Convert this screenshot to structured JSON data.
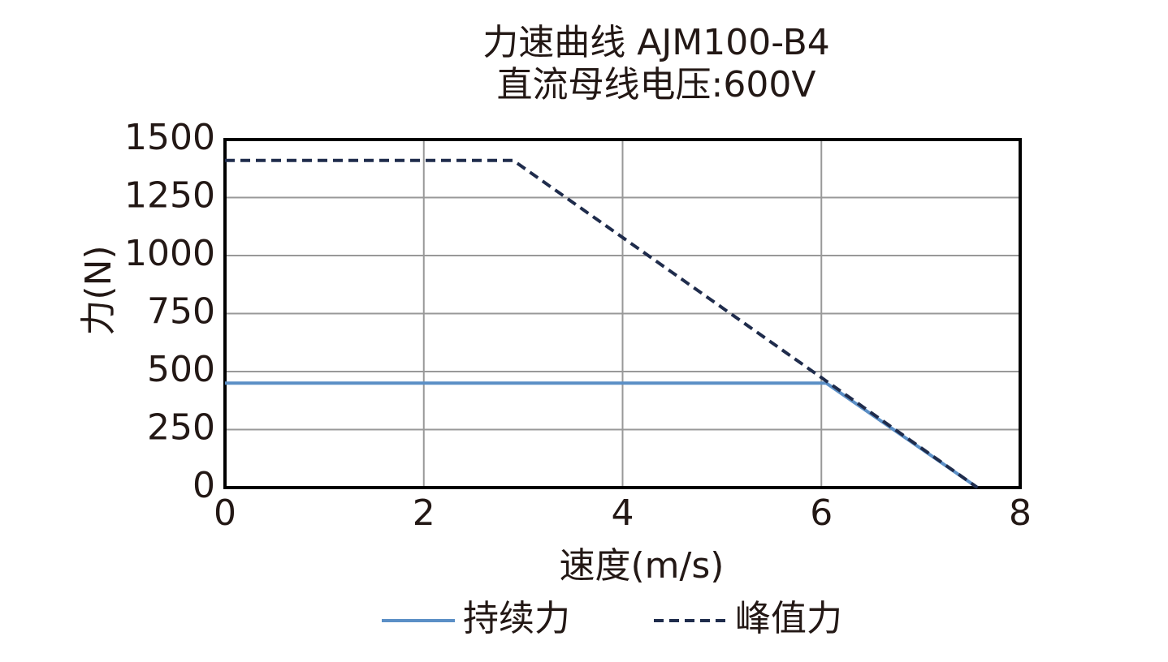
{
  "chart_data": {
    "type": "line",
    "title": "力速曲线 AJM100-B4",
    "subtitle": "直流母线电压:600V",
    "x_label": "速度(m/s)",
    "y_label": "力(N)",
    "xlim": [
      0,
      8
    ],
    "xticks": [
      0,
      2,
      4,
      6,
      8
    ],
    "ylim": [
      0,
      1500
    ],
    "yticks": [
      0,
      250,
      500,
      750,
      1000,
      1250,
      1500
    ],
    "grid": true,
    "legend": "bottom",
    "series": [
      {
        "name": "持续力",
        "color": "#5b8fc6",
        "style": "solid",
        "x": [
          0,
          6.05,
          7.57
        ],
        "values": [
          450,
          450,
          0
        ]
      },
      {
        "name": "峰值力",
        "color": "#1f2c4c",
        "style": "dashed",
        "x": [
          0,
          2.9,
          7.57
        ],
        "values": [
          1410,
          1410,
          0
        ]
      }
    ]
  }
}
